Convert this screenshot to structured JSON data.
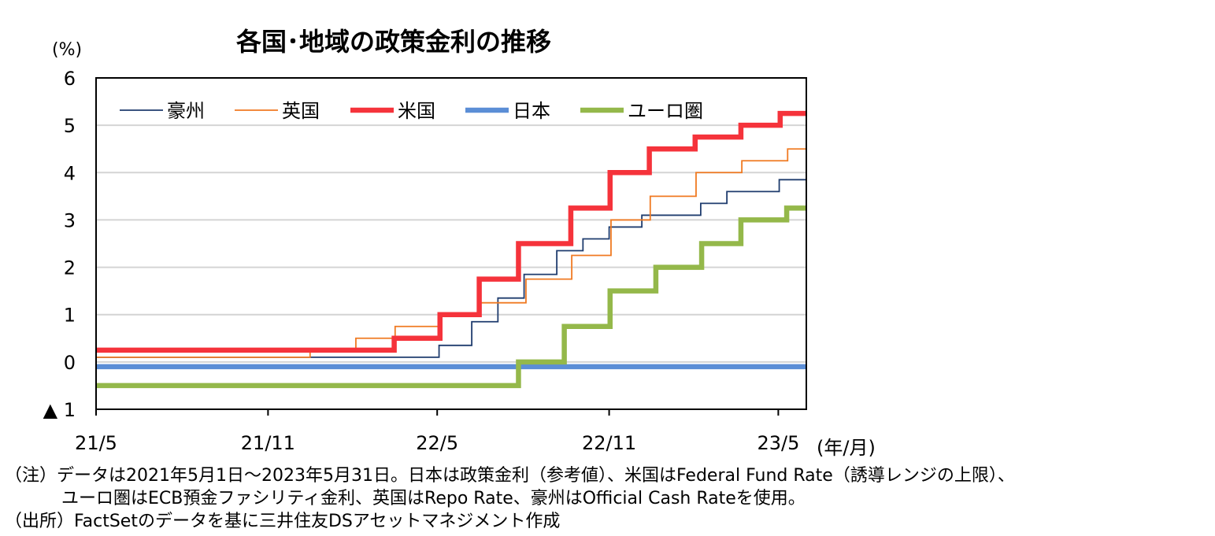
{
  "chart_data": {
    "type": "line",
    "title": "各国･地域の政策金利の推移",
    "ylabel": "(%)",
    "xlabel": "(年/月)",
    "ylim": [
      -1,
      6
    ],
    "xlim": [
      "2021-05-01",
      "2023-05-31"
    ],
    "y_ticks": [
      {
        "value": 6,
        "label": "6"
      },
      {
        "value": 5,
        "label": "5"
      },
      {
        "value": 4,
        "label": "4"
      },
      {
        "value": 3,
        "label": "3"
      },
      {
        "value": 2,
        "label": "2"
      },
      {
        "value": 1,
        "label": "1"
      },
      {
        "value": 0,
        "label": "0"
      },
      {
        "value": -1,
        "label": "▲ 1"
      }
    ],
    "x_ticks": [
      {
        "date": "2021-05-01",
        "label": "21/5"
      },
      {
        "date": "2021-11-01",
        "label": "21/11"
      },
      {
        "date": "2022-05-01",
        "label": "22/5"
      },
      {
        "date": "2022-11-01",
        "label": "22/11"
      },
      {
        "date": "2023-05-01",
        "label": "23/5"
      }
    ],
    "grid": true,
    "legend_position": "top-left",
    "series": [
      {
        "name": "豪州",
        "color": "#1f3c6e",
        "width": 1.8,
        "step": true,
        "points": [
          [
            "2021-05-01",
            0.1
          ],
          [
            "2022-05-03",
            0.35
          ],
          [
            "2022-06-07",
            0.85
          ],
          [
            "2022-07-05",
            1.35
          ],
          [
            "2022-08-02",
            1.85
          ],
          [
            "2022-09-06",
            2.35
          ],
          [
            "2022-10-04",
            2.6
          ],
          [
            "2022-11-01",
            2.85
          ],
          [
            "2022-12-06",
            3.1
          ],
          [
            "2023-02-07",
            3.35
          ],
          [
            "2023-03-07",
            3.6
          ],
          [
            "2023-05-02",
            3.85
          ],
          [
            "2023-05-31",
            3.85
          ]
        ]
      },
      {
        "name": "英国",
        "color": "#f07a22",
        "width": 1.8,
        "step": true,
        "points": [
          [
            "2021-05-01",
            0.1
          ],
          [
            "2021-12-16",
            0.25
          ],
          [
            "2022-02-03",
            0.5
          ],
          [
            "2022-03-17",
            0.75
          ],
          [
            "2022-05-05",
            1.0
          ],
          [
            "2022-06-16",
            1.25
          ],
          [
            "2022-08-04",
            1.75
          ],
          [
            "2022-09-22",
            2.25
          ],
          [
            "2022-11-03",
            3.0
          ],
          [
            "2022-12-15",
            3.5
          ],
          [
            "2023-02-02",
            4.0
          ],
          [
            "2023-03-23",
            4.25
          ],
          [
            "2023-05-11",
            4.5
          ],
          [
            "2023-05-31",
            4.5
          ]
        ]
      },
      {
        "name": "米国",
        "color": "#f5333b",
        "width": 6.5,
        "step": true,
        "points": [
          [
            "2021-05-01",
            0.25
          ],
          [
            "2022-03-16",
            0.5
          ],
          [
            "2022-05-04",
            1.0
          ],
          [
            "2022-06-15",
            1.75
          ],
          [
            "2022-07-27",
            2.5
          ],
          [
            "2022-09-21",
            3.25
          ],
          [
            "2022-11-02",
            4.0
          ],
          [
            "2022-12-14",
            4.5
          ],
          [
            "2023-02-01",
            4.75
          ],
          [
            "2023-03-22",
            5.0
          ],
          [
            "2023-05-03",
            5.25
          ],
          [
            "2023-05-31",
            5.25
          ]
        ]
      },
      {
        "name": "日本",
        "color": "#5b8ed6",
        "width": 6.5,
        "step": true,
        "points": [
          [
            "2021-05-01",
            -0.1
          ],
          [
            "2023-05-31",
            -0.1
          ]
        ]
      },
      {
        "name": "ユーロ圏",
        "color": "#94b84a",
        "width": 6.5,
        "step": true,
        "points": [
          [
            "2021-05-01",
            -0.5
          ],
          [
            "2022-07-27",
            0.0
          ],
          [
            "2022-09-14",
            0.75
          ],
          [
            "2022-11-02",
            1.5
          ],
          [
            "2022-12-21",
            2.0
          ],
          [
            "2023-02-08",
            2.5
          ],
          [
            "2023-03-22",
            3.0
          ],
          [
            "2023-05-10",
            3.25
          ],
          [
            "2023-05-31",
            3.25
          ]
        ]
      }
    ]
  },
  "notes": {
    "line1": "（注）データは2021年5月1日～2023年5月31日。日本は政策金利（参考値）、米国はFederal Fund Rate（誘導レンジの上限）、",
    "line2": "ユーロ圏はECB預金ファシリティ金利、英国はRepo Rate、豪州はOfficial Cash Rateを使用。",
    "line3": "（出所）FactSetのデータを基に三井住友DSアセットマネジメント作成"
  }
}
